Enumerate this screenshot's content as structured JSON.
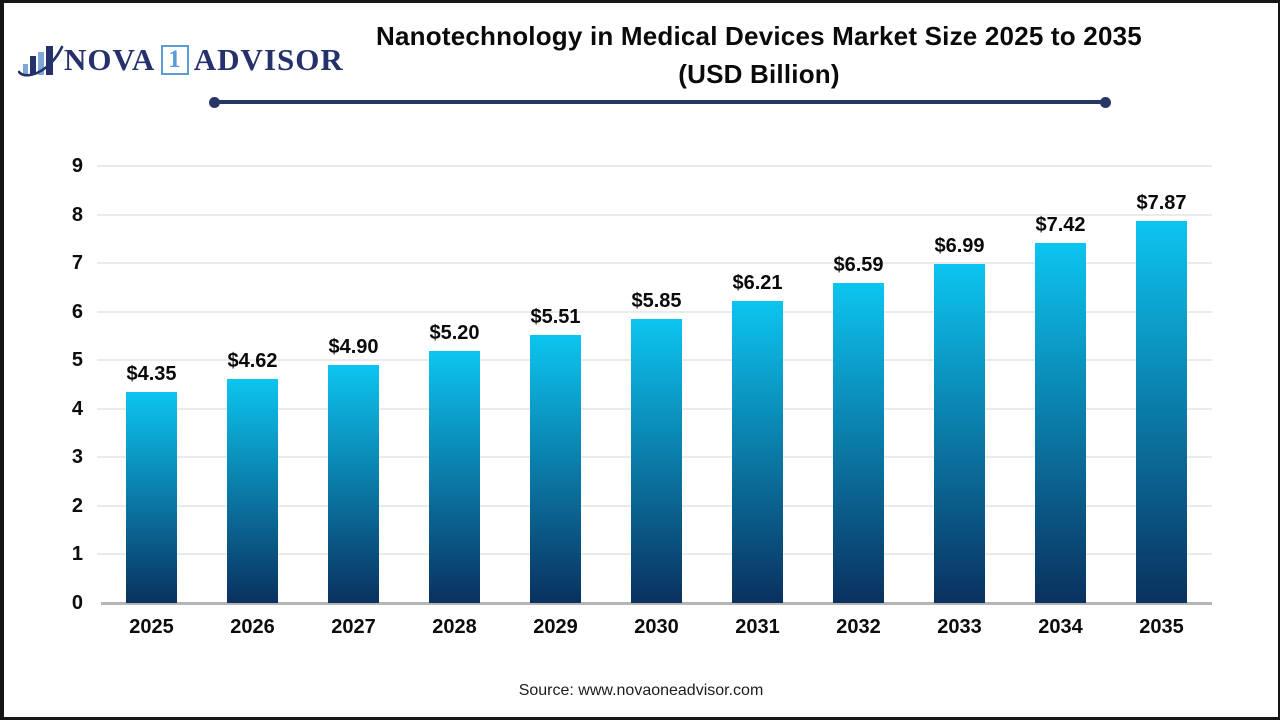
{
  "logo": {
    "icon": "bar-chart-swoosh-icon",
    "text_nova": "NOVA",
    "text_one": "1",
    "text_advisor": "ADVISOR"
  },
  "title": {
    "line1": "Nanotechnology in Medical Devices Market Size 2025 to 2035",
    "line2": "(USD Billion)"
  },
  "source": "Source: www.novaoneadvisor.com",
  "colors": {
    "bar_top": "#0cc5f0",
    "bar_bottom": "#0a315f",
    "divider": "#263765",
    "grid": "#ebebeb",
    "axis_line": "#b5b5b5",
    "logo_navy": "#25316B",
    "logo_light_blue": "#5B9BD5",
    "title_text": "#0a0a0a"
  },
  "chart_data": {
    "type": "bar",
    "title": "Nanotechnology in Medical Devices Market Size 2025 to 2035 (USD Billion)",
    "categories": [
      "2025",
      "2026",
      "2027",
      "2028",
      "2029",
      "2030",
      "2031",
      "2032",
      "2033",
      "2034",
      "2035"
    ],
    "values": [
      4.35,
      4.62,
      4.9,
      5.2,
      5.51,
      5.85,
      6.21,
      6.59,
      6.99,
      7.42,
      7.87
    ],
    "labels": [
      "$4.35",
      "$4.62",
      "$4.90",
      "$5.20",
      "$5.51",
      "$5.85",
      "$6.21",
      "$6.59",
      "$6.99",
      "$7.42",
      "$7.87"
    ],
    "xlabel": "",
    "ylabel": "",
    "ylim": [
      0,
      9
    ],
    "yticks": [
      0,
      1,
      2,
      3,
      4,
      5,
      6,
      7,
      8,
      9
    ],
    "grid": true,
    "legend": "none",
    "bar_gradient": [
      "#0cc5f0",
      "#0a315f"
    ]
  }
}
